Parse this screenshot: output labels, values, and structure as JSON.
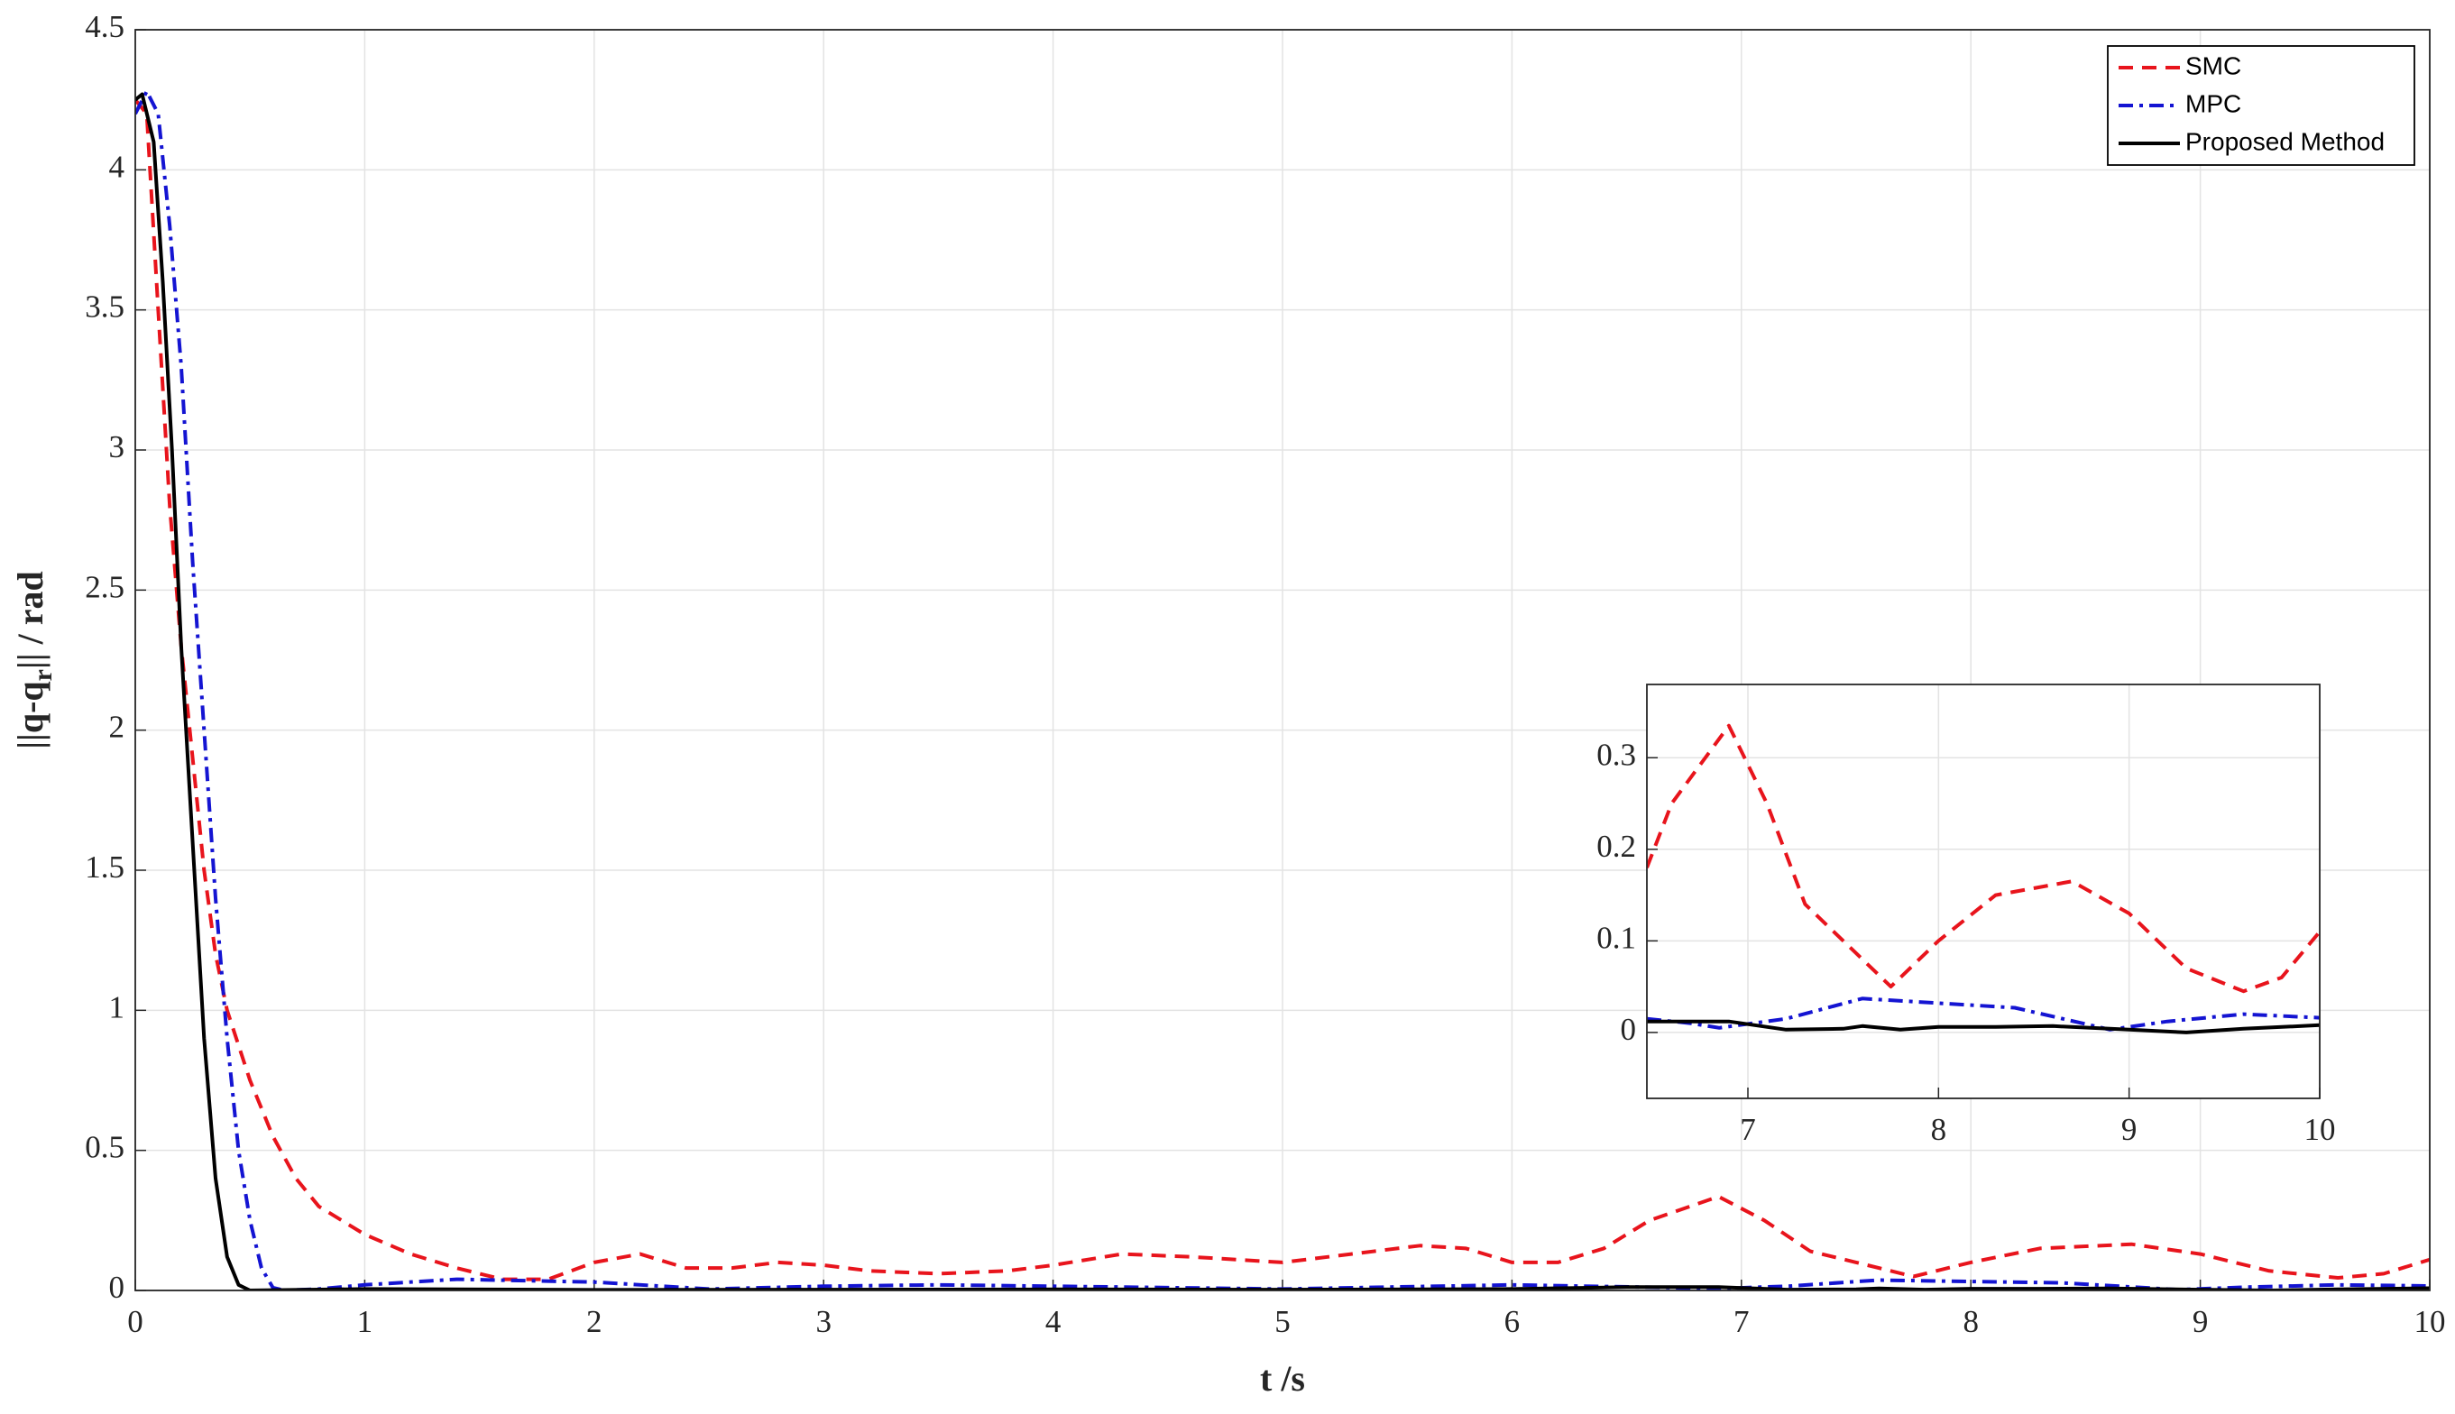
{
  "chart_data": [
    {
      "type": "line",
      "xlabel": "t /s",
      "ylabel": [
        "||q-q",
        "r",
        "|| / rad"
      ],
      "xlim": [
        0,
        10
      ],
      "ylim": [
        0,
        4.5
      ],
      "xticks": [
        0,
        1,
        2,
        3,
        4,
        5,
        6,
        7,
        8,
        9,
        10
      ],
      "yticks": [
        0,
        0.5,
        1,
        1.5,
        2,
        2.5,
        3,
        3.5,
        4,
        4.5
      ],
      "grid": true,
      "legend": "upper right",
      "series": [
        {
          "name": "SMC",
          "color": "#e8141c",
          "style": "dashed",
          "x": [
            0,
            0.05,
            0.1,
            0.15,
            0.2,
            0.25,
            0.3,
            0.35,
            0.4,
            0.5,
            0.6,
            0.7,
            0.8,
            1.0,
            1.2,
            1.4,
            1.6,
            1.8,
            2.0,
            2.2,
            2.4,
            2.6,
            2.8,
            3.0,
            3.2,
            3.5,
            3.8,
            4.0,
            4.3,
            4.6,
            5.0,
            5.3,
            5.6,
            5.8,
            6.0,
            6.2,
            6.4,
            6.6,
            6.9,
            7.1,
            7.3,
            7.5,
            7.75,
            8.0,
            8.3,
            8.7,
            9.0,
            9.3,
            9.6,
            9.8,
            10
          ],
          "values": [
            4.25,
            4.2,
            3.5,
            2.8,
            2.3,
            1.9,
            1.5,
            1.2,
            1.0,
            0.75,
            0.55,
            0.4,
            0.3,
            0.2,
            0.13,
            0.08,
            0.04,
            0.04,
            0.1,
            0.13,
            0.08,
            0.08,
            0.1,
            0.09,
            0.07,
            0.06,
            0.07,
            0.09,
            0.13,
            0.12,
            0.1,
            0.13,
            0.16,
            0.15,
            0.1,
            0.1,
            0.15,
            0.25,
            0.335,
            0.25,
            0.14,
            0.1,
            0.05,
            0.1,
            0.15,
            0.165,
            0.13,
            0.07,
            0.045,
            0.06,
            0.11
          ]
        },
        {
          "name": "MPC",
          "color": "#1414d2",
          "style": "dashdot",
          "x": [
            0,
            0.05,
            0.1,
            0.15,
            0.2,
            0.25,
            0.3,
            0.35,
            0.4,
            0.45,
            0.5,
            0.55,
            0.6,
            0.65,
            0.8,
            1.0,
            1.4,
            2.0,
            2.5,
            3.0,
            3.5,
            4.0,
            5.0,
            6.0,
            6.7,
            6.85,
            7.2,
            7.6,
            8.0,
            8.4,
            8.9,
            9.2,
            9.6,
            10
          ],
          "values": [
            4.2,
            4.28,
            4.2,
            3.8,
            3.3,
            2.6,
            2.0,
            1.4,
            0.9,
            0.5,
            0.25,
            0.08,
            0.01,
            0,
            0.005,
            0.02,
            0.04,
            0.03,
            0.005,
            0.015,
            0.02,
            0.015,
            0.005,
            0.02,
            0.01,
            0.005,
            0.015,
            0.037,
            0.032,
            0.027,
            0.003,
            0.012,
            0.02,
            0.016
          ]
        },
        {
          "name": "Proposed Method",
          "color": "#000000",
          "style": "solid",
          "x": [
            0,
            0.03,
            0.08,
            0.12,
            0.16,
            0.2,
            0.25,
            0.3,
            0.35,
            0.4,
            0.45,
            0.5,
            1,
            2,
            3,
            4,
            5,
            6,
            6.5,
            6.9,
            7.2,
            7.5,
            7.6,
            7.8,
            8.0,
            8.3,
            8.6,
            9.0,
            9.3,
            9.6,
            10
          ],
          "values": [
            4.25,
            4.27,
            4.1,
            3.6,
            3.0,
            2.3,
            1.6,
            0.9,
            0.4,
            0.12,
            0.02,
            0,
            0.005,
            0.002,
            0.003,
            0.004,
            0.003,
            0.005,
            0.012,
            0.012,
            0.003,
            0.004,
            0.007,
            0.003,
            0.006,
            0.006,
            0.007,
            0.003,
            0.0,
            0.004,
            0.008
          ]
        }
      ]
    },
    {
      "type": "line",
      "xlim": [
        6.47,
        10
      ],
      "ylim": [
        -0.072,
        0.38
      ],
      "xticks": [
        7,
        8,
        9,
        10
      ],
      "yticks": [
        0,
        0.1,
        0.2,
        0.3
      ],
      "grid": true,
      "series": [
        {
          "color": "#e8141c",
          "style": "dashed",
          "x": [
            6.47,
            6.6,
            6.9,
            7.1,
            7.3,
            7.5,
            7.75,
            8.0,
            8.3,
            8.7,
            9.0,
            9.3,
            9.6,
            9.8,
            10
          ],
          "values": [
            0.18,
            0.25,
            0.335,
            0.25,
            0.14,
            0.1,
            0.05,
            0.1,
            0.15,
            0.165,
            0.13,
            0.07,
            0.045,
            0.06,
            0.11
          ]
        },
        {
          "color": "#1414d2",
          "style": "dashdot",
          "x": [
            6.47,
            6.7,
            6.85,
            7.2,
            7.6,
            8.0,
            8.4,
            8.9,
            9.2,
            9.6,
            10
          ],
          "values": [
            0.015,
            0.01,
            0.005,
            0.015,
            0.037,
            0.032,
            0.027,
            0.003,
            0.012,
            0.02,
            0.016
          ]
        },
        {
          "color": "#000000",
          "style": "solid",
          "x": [
            6.47,
            6.9,
            7.2,
            7.5,
            7.6,
            7.8,
            8.0,
            8.3,
            8.6,
            9.0,
            9.3,
            9.6,
            10
          ],
          "values": [
            0.012,
            0.012,
            0.003,
            0.004,
            0.007,
            0.003,
            0.006,
            0.006,
            0.007,
            0.003,
            0.0,
            0.004,
            0.008
          ]
        }
      ]
    }
  ]
}
